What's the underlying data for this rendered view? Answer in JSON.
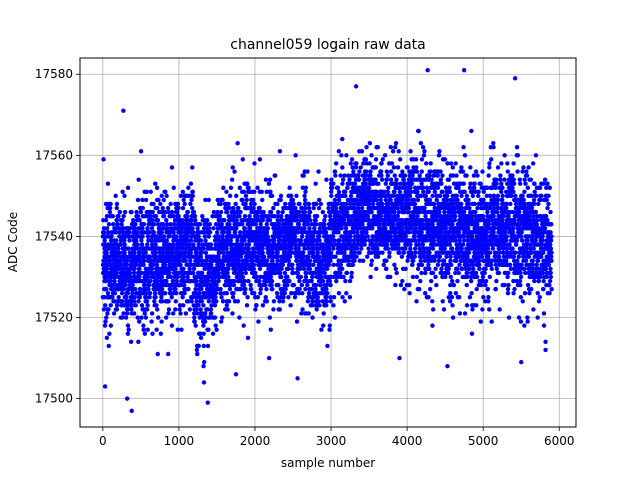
{
  "chart_data": {
    "type": "scatter",
    "title": "channel059 logain raw data",
    "xlabel": "sample number",
    "ylabel": "ADC Code",
    "xlim": [
      -300,
      6220
    ],
    "ylim": [
      17493,
      17584
    ],
    "xticks": [
      0,
      1000,
      2000,
      3000,
      4000,
      5000,
      6000
    ],
    "yticks": [
      17500,
      17520,
      17540,
      17560,
      17580
    ],
    "grid": true,
    "color": "#0000ff",
    "n_points": 5900,
    "x_range": [
      0,
      5900
    ],
    "quantization_step": 1,
    "segments": [
      {
        "x": [
          0,
          300
        ],
        "center": 17533,
        "spread": 18
      },
      {
        "x": [
          300,
          600
        ],
        "center": 17533,
        "spread": 20
      },
      {
        "x": [
          600,
          900
        ],
        "center": 17535,
        "spread": 19
      },
      {
        "x": [
          900,
          1200
        ],
        "center": 17537,
        "spread": 20
      },
      {
        "x": [
          1200,
          1500
        ],
        "center": 17530,
        "spread": 21
      },
      {
        "x": [
          1500,
          1800
        ],
        "center": 17537,
        "spread": 19
      },
      {
        "x": [
          1800,
          2100
        ],
        "center": 17538,
        "spread": 19
      },
      {
        "x": [
          2100,
          2400
        ],
        "center": 17537,
        "spread": 19
      },
      {
        "x": [
          2400,
          2700
        ],
        "center": 17539,
        "spread": 19
      },
      {
        "x": [
          2700,
          3000
        ],
        "center": 17535,
        "spread": 20
      },
      {
        "x": [
          3000,
          3300
        ],
        "center": 17543,
        "spread": 19
      },
      {
        "x": [
          3300,
          3600
        ],
        "center": 17547,
        "spread": 18
      },
      {
        "x": [
          3600,
          3900
        ],
        "center": 17545,
        "spread": 18
      },
      {
        "x": [
          3900,
          4200
        ],
        "center": 17544,
        "spread": 20
      },
      {
        "x": [
          4200,
          4500
        ],
        "center": 17543,
        "spread": 20
      },
      {
        "x": [
          4500,
          4800
        ],
        "center": 17542,
        "spread": 20
      },
      {
        "x": [
          4800,
          5100
        ],
        "center": 17540,
        "spread": 20
      },
      {
        "x": [
          5100,
          5400
        ],
        "center": 17542,
        "spread": 20
      },
      {
        "x": [
          5400,
          5700
        ],
        "center": 17541,
        "spread": 19
      },
      {
        "x": [
          5700,
          5900
        ],
        "center": 17538,
        "spread": 19
      }
    ],
    "notable_points": [
      {
        "x": 4270,
        "y": 17581
      },
      {
        "x": 4750,
        "y": 17581
      },
      {
        "x": 5420,
        "y": 17579
      },
      {
        "x": 3330,
        "y": 17577
      },
      {
        "x": 270,
        "y": 17571
      },
      {
        "x": 380,
        "y": 17497
      },
      {
        "x": 320,
        "y": 17500
      },
      {
        "x": 1380,
        "y": 17499
      },
      {
        "x": 1330,
        "y": 17504
      },
      {
        "x": 30,
        "y": 17503
      },
      {
        "x": 2560,
        "y": 17505
      },
      {
        "x": 4530,
        "y": 17508
      },
      {
        "x": 5500,
        "y": 17509
      },
      {
        "x": 5820,
        "y": 17512
      },
      {
        "x": 1750,
        "y": 17506
      },
      {
        "x": 3900,
        "y": 17510
      }
    ]
  }
}
